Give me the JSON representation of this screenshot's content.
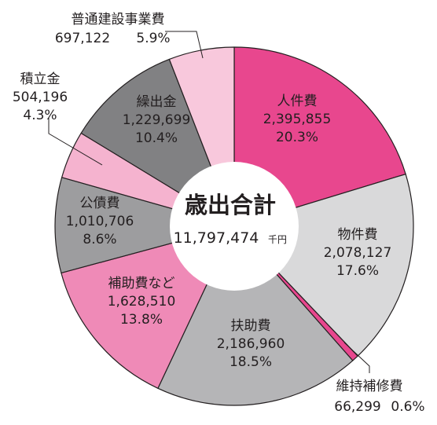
{
  "chart_data": {
    "type": "pie",
    "center_title": "歳出合計",
    "total_value": "11,797,474",
    "total_unit": "千円",
    "slices": [
      {
        "label": "人件費",
        "value": "2,395,855",
        "percent": "20.3%",
        "pct": 20.3,
        "color": "#e8478e"
      },
      {
        "label": "物件費",
        "value": "2,078,127",
        "percent": "17.6%",
        "pct": 17.6,
        "color": "#d9d9da"
      },
      {
        "label": "維持補修費",
        "value": "66,299",
        "percent": "0.6%",
        "pct": 0.6,
        "color": "#e8478e"
      },
      {
        "label": "扶助費",
        "value": "2,186,960",
        "percent": "18.5%",
        "pct": 18.5,
        "color": "#b5b5b7"
      },
      {
        "label": "補助費など",
        "value": "1,628,510",
        "percent": "13.8%",
        "pct": 13.8,
        "color": "#ef8ab7"
      },
      {
        "label": "公債費",
        "value": "1,010,706",
        "percent": "8.6%",
        "pct": 8.6,
        "color": "#9d9d9f"
      },
      {
        "label": "積立金",
        "value": "504,196",
        "percent": "4.3%",
        "pct": 4.3,
        "color": "#f5b3cf"
      },
      {
        "label": "繰出金",
        "value": "1,229,699",
        "percent": "10.4%",
        "pct": 10.4,
        "color": "#818183"
      },
      {
        "label": "普通建設事業費",
        "value": "697,122",
        "percent": "5.9%",
        "pct": 5.9,
        "color": "#f8c8dc"
      }
    ]
  }
}
